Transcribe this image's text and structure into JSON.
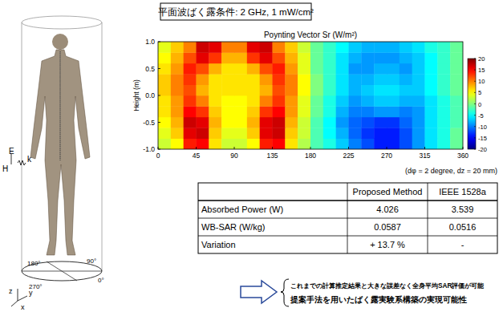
{
  "header": "平面波ばく露条件: 2 GHz,  1 mW/cm²",
  "chart_data": {
    "type": "heatmap",
    "title": "Poynting Vector Sr (W/m²)",
    "y_label": "Height (m)",
    "x": [
      7.5,
      22.5,
      37.5,
      52.5,
      67.5,
      82.5,
      97.5,
      112.5,
      127.5,
      142.5,
      157.5,
      172.5,
      187.5,
      202.5,
      217.5,
      232.5,
      247.5,
      262.5,
      277.5,
      292.5,
      307.5,
      322.5,
      337.5,
      352.5
    ],
    "y": [
      -0.9,
      -0.7,
      -0.5,
      -0.3,
      -0.1,
      0.1,
      0.3,
      0.5,
      0.7,
      0.9
    ],
    "values": [
      [
        3,
        5,
        14,
        15,
        6,
        3,
        3,
        5,
        14,
        15,
        6,
        2,
        -2,
        -4,
        -7,
        -10,
        -12,
        -14,
        -14,
        -12,
        -9,
        -6,
        -4,
        -1
      ],
      [
        4,
        7,
        16,
        17,
        7,
        4,
        4,
        7,
        16,
        17,
        7,
        3,
        -2,
        -5,
        -8,
        -11,
        -13,
        -14,
        -14,
        -12,
        -9,
        -6,
        -4,
        -1
      ],
      [
        5,
        8,
        17,
        16,
        8,
        5,
        5,
        8,
        16,
        17,
        8,
        3,
        -2,
        -5,
        -9,
        -11,
        -12,
        -13,
        -13,
        -11,
        -9,
        -6,
        -4,
        -2
      ],
      [
        6,
        9,
        15,
        13,
        7,
        5,
        5,
        7,
        13,
        15,
        9,
        4,
        -1,
        -4,
        -8,
        -10,
        -10,
        -9,
        -9,
        -10,
        -9,
        -6,
        -4,
        -2
      ],
      [
        6,
        9,
        13,
        10,
        6,
        5,
        5,
        6,
        10,
        13,
        9,
        4,
        -1,
        -4,
        -7,
        -9,
        -8,
        -7,
        -7,
        -8,
        -8,
        -6,
        -4,
        -2
      ],
      [
        7,
        10,
        12,
        8,
        6,
        6,
        6,
        6,
        8,
        12,
        10,
        5,
        0,
        -3,
        -6,
        -8,
        -7,
        -6,
        -6,
        -7,
        -7,
        -5,
        -3,
        -1
      ],
      [
        7,
        10,
        13,
        9,
        6,
        6,
        6,
        6,
        9,
        13,
        10,
        5,
        0,
        -3,
        -6,
        -8,
        -8,
        -7,
        -7,
        -8,
        -7,
        -5,
        -3,
        -1
      ],
      [
        6,
        9,
        14,
        12,
        8,
        6,
        6,
        8,
        12,
        14,
        9,
        4,
        -1,
        -3,
        -6,
        -9,
        -9,
        -8,
        -8,
        -9,
        -7,
        -5,
        -3,
        -1
      ],
      [
        5,
        8,
        12,
        16,
        13,
        8,
        8,
        13,
        16,
        12,
        8,
        4,
        -1,
        -3,
        -6,
        -8,
        -9,
        -9,
        -9,
        -8,
        -7,
        -5,
        -3,
        -1
      ],
      [
        4,
        7,
        10,
        17,
        16,
        10,
        10,
        16,
        17,
        10,
        7,
        3,
        -1,
        -3,
        -5,
        -7,
        -8,
        -8,
        -8,
        -7,
        -6,
        -4,
        -3,
        -1
      ]
    ],
    "xlim": [
      0,
      360
    ],
    "ylim": [
      -1,
      1
    ],
    "xticks": [
      0,
      45,
      90,
      135,
      180,
      225,
      270,
      315,
      360
    ],
    "yticks": [
      {
        "value": -1,
        "label": "-1.0"
      },
      -0.5,
      {
        "value": 0,
        "label": "0.0"
      },
      0.5,
      {
        "value": 1,
        "label": "1.0"
      }
    ],
    "color_range": [
      -20,
      20
    ],
    "color_ticks": [
      -20,
      -15,
      -10,
      -5,
      0,
      5,
      10,
      15,
      20
    ]
  },
  "note": "(dφ = 2 degree, dz = 20 mm)",
  "table": {
    "header": [
      "",
      "Proposed Method",
      "IEEE 1528a"
    ],
    "rows": [
      [
        "Absorbed Power (W)",
        "4.026",
        "3.539"
      ],
      [
        "WB-SAR (W/kg)",
        "0.0587",
        "0.0516"
      ],
      [
        "Variation",
        "+ 13.7 %",
        "-"
      ]
    ]
  },
  "conclusions": [
    "これまでの計算推定結果と大きな誤差なく全身平均SAR評価が可能",
    "提案手法を用いたばく露実験系構築の実現可能性"
  ],
  "figure": {
    "field": [
      "E",
      "H",
      "k"
    ],
    "angles": [
      "180°",
      "90°",
      "270°",
      "0°"
    ],
    "axes": [
      "z",
      "y",
      "x"
    ]
  }
}
